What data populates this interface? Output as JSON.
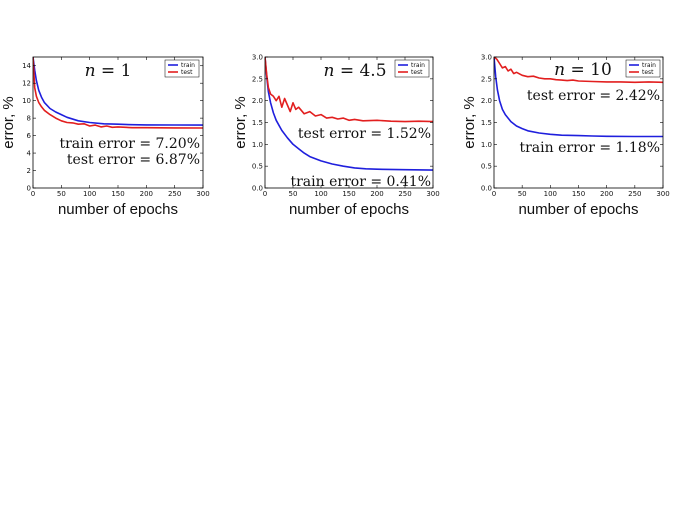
{
  "chart_data": [
    {
      "type": "line",
      "title": "n = 1",
      "title_var": "n",
      "title_value": "1",
      "xlabel": "number of epochs",
      "ylabel": "error, %",
      "xlim": [
        0,
        300
      ],
      "ylim": [
        0,
        15
      ],
      "xticks": [
        0,
        50,
        100,
        150,
        200,
        250,
        300
      ],
      "yticks": [
        0,
        2,
        4,
        6,
        8,
        10,
        12,
        14
      ],
      "ytick_labels": [
        "0",
        "2",
        "4",
        "6",
        "8",
        "10",
        "12",
        "14"
      ],
      "legend": "top-right",
      "annotations": [
        "train error = 7.20%",
        "test error = 6.87%"
      ],
      "series": [
        {
          "name": "train",
          "color": "#1f1fdd",
          "x": [
            0,
            3,
            6,
            10,
            15,
            20,
            30,
            40,
            50,
            60,
            80,
            100,
            125,
            150,
            175,
            200,
            250,
            300
          ],
          "y": [
            15,
            13.5,
            12.3,
            11.2,
            10.4,
            9.8,
            9.1,
            8.7,
            8.4,
            8.1,
            7.7,
            7.5,
            7.35,
            7.3,
            7.25,
            7.22,
            7.21,
            7.2
          ]
        },
        {
          "name": "test",
          "color": "#e21f1f",
          "x": [
            0,
            3,
            6,
            10,
            15,
            20,
            30,
            40,
            50,
            60,
            70,
            80,
            90,
            100,
            110,
            120,
            130,
            140,
            150,
            175,
            200,
            250,
            300
          ],
          "y": [
            15,
            11.5,
            10.5,
            9.8,
            9.3,
            8.9,
            8.4,
            8.0,
            7.7,
            7.5,
            7.45,
            7.3,
            7.35,
            7.1,
            7.2,
            7.0,
            7.1,
            6.95,
            7.0,
            6.9,
            6.9,
            6.88,
            6.87
          ]
        }
      ]
    },
    {
      "type": "line",
      "title": "n = 4.5",
      "title_var": "n",
      "title_value": "4.5",
      "xlabel": "number of epochs",
      "ylabel": "error, %",
      "xlim": [
        0,
        300
      ],
      "ylim": [
        0,
        3
      ],
      "xticks": [
        0,
        50,
        100,
        150,
        200,
        250,
        300
      ],
      "yticks": [
        0,
        0.5,
        1,
        1.5,
        2,
        2.5,
        3
      ],
      "ytick_labels": [
        "0.0",
        "0.5",
        "1.0",
        "1.5",
        "2.0",
        "2.5",
        "3.0"
      ],
      "legend": "top-right",
      "annotations": [
        "test error = 1.52%",
        "train error = 0.41%"
      ],
      "series": [
        {
          "name": "train",
          "color": "#1f1fdd",
          "x": [
            0,
            3,
            6,
            10,
            15,
            20,
            30,
            40,
            50,
            60,
            70,
            80,
            100,
            120,
            140,
            160,
            180,
            200,
            250,
            300
          ],
          "y": [
            3.0,
            2.55,
            2.2,
            1.95,
            1.72,
            1.55,
            1.32,
            1.15,
            1.0,
            0.9,
            0.8,
            0.72,
            0.62,
            0.55,
            0.5,
            0.46,
            0.44,
            0.43,
            0.42,
            0.41
          ]
        },
        {
          "name": "test",
          "color": "#e21f1f",
          "x": [
            0,
            3,
            6,
            10,
            15,
            20,
            25,
            30,
            35,
            40,
            45,
            50,
            55,
            60,
            70,
            80,
            90,
            100,
            110,
            120,
            130,
            140,
            150,
            160,
            175,
            200,
            225,
            250,
            275,
            300
          ],
          "y": [
            3.0,
            2.6,
            2.3,
            2.15,
            2.1,
            2.0,
            2.1,
            1.85,
            2.05,
            1.9,
            1.75,
            1.95,
            1.8,
            1.85,
            1.7,
            1.75,
            1.65,
            1.68,
            1.6,
            1.62,
            1.58,
            1.6,
            1.55,
            1.57,
            1.54,
            1.55,
            1.53,
            1.52,
            1.53,
            1.52
          ]
        }
      ]
    },
    {
      "type": "line",
      "title": "n = 10",
      "title_var": "n",
      "title_value": "10",
      "xlabel": "number of epochs",
      "ylabel": "error, %",
      "xlim": [
        0,
        300
      ],
      "ylim": [
        0,
        3
      ],
      "xticks": [
        0,
        50,
        100,
        150,
        200,
        250,
        300
      ],
      "yticks": [
        0,
        0.5,
        1,
        1.5,
        2,
        2.5,
        3
      ],
      "ytick_labels": [
        "0.0",
        "0.5",
        "1.0",
        "1.5",
        "2.0",
        "2.5",
        "3.0"
      ],
      "legend": "top-right",
      "annotations": [
        "test error = 2.42%",
        "train error = 1.18%"
      ],
      "series": [
        {
          "name": "train",
          "color": "#1f1fdd",
          "x": [
            0,
            3,
            6,
            10,
            15,
            20,
            30,
            40,
            50,
            60,
            80,
            100,
            120,
            150,
            175,
            200,
            250,
            300
          ],
          "y": [
            3.0,
            2.55,
            2.25,
            2.0,
            1.8,
            1.68,
            1.52,
            1.42,
            1.36,
            1.31,
            1.26,
            1.23,
            1.21,
            1.2,
            1.19,
            1.185,
            1.18,
            1.18
          ]
        },
        {
          "name": "test",
          "color": "#e21f1f",
          "x": [
            0,
            5,
            10,
            15,
            20,
            25,
            30,
            35,
            40,
            50,
            60,
            70,
            80,
            90,
            100,
            110,
            120,
            130,
            140,
            150,
            175,
            200,
            225,
            250,
            275,
            300
          ],
          "y": [
            3.0,
            2.95,
            2.85,
            2.75,
            2.78,
            2.68,
            2.72,
            2.62,
            2.65,
            2.58,
            2.55,
            2.56,
            2.52,
            2.5,
            2.5,
            2.48,
            2.47,
            2.46,
            2.47,
            2.45,
            2.44,
            2.43,
            2.43,
            2.42,
            2.43,
            2.42
          ]
        }
      ]
    }
  ]
}
